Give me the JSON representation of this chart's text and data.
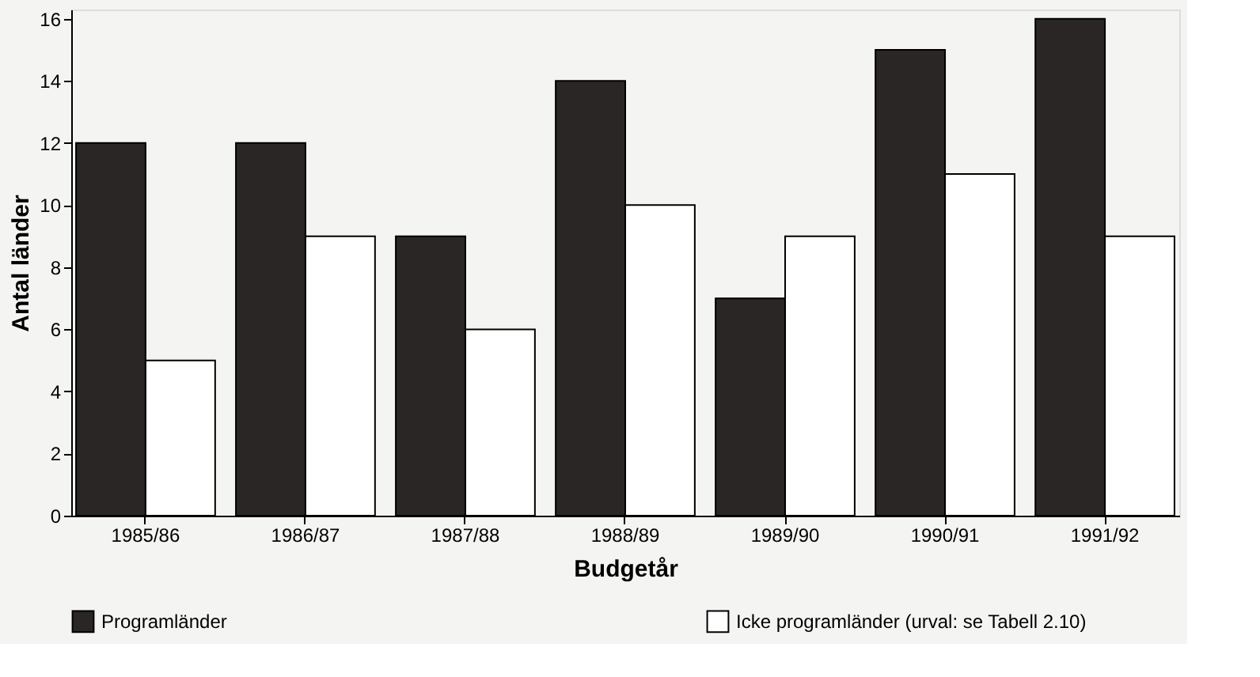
{
  "chart_data": {
    "type": "bar",
    "xlabel": "Budgetår",
    "ylabel": "Antal länder",
    "categories": [
      "1985/86",
      "1986/87",
      "1987/88",
      "1988/89",
      "1989/90",
      "1990/91",
      "1991/92"
    ],
    "series": [
      {
        "name": "Programländer",
        "color": "#2b2626",
        "values": [
          12,
          12,
          9,
          14,
          7,
          15,
          16
        ]
      },
      {
        "name": "Icke programländer (urval: se Tabell 2.10)",
        "color": "#ffffff",
        "values": [
          5,
          9,
          6,
          10,
          9,
          11,
          9
        ]
      }
    ],
    "ylim": [
      0,
      16.3
    ],
    "yticks": [
      0,
      2,
      4,
      6,
      8,
      10,
      12,
      14,
      16
    ],
    "grid": false,
    "legend": "bottom"
  }
}
